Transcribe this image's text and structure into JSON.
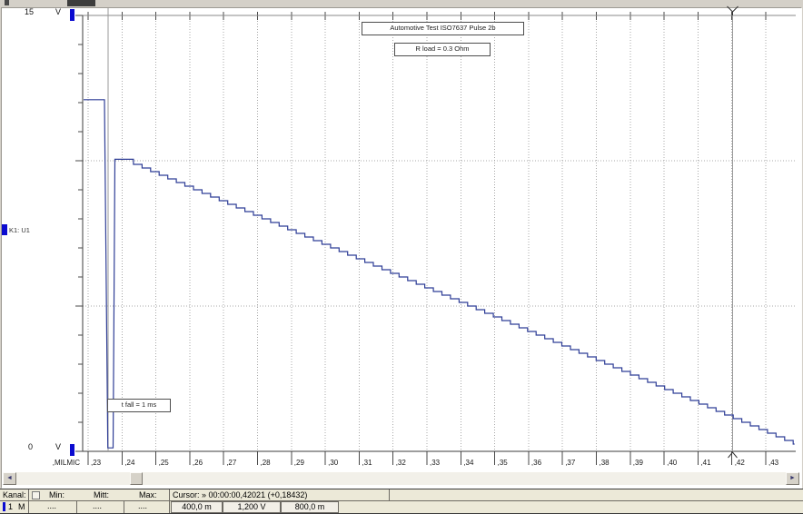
{
  "chart_data": {
    "type": "line",
    "title": "Automotive Test ISO7637 Pulse 2b",
    "annotations": {
      "title_box": "Automotive Test ISO7637 Pulse 2b",
      "r_load_box": "R load = 0.3 Ohm",
      "t_fall_box": "t fall = 1 ms"
    },
    "x_axis": {
      "unit_label": ",MILMIC",
      "t_start": 0.23,
      "t_step": 0.01,
      "tick_labels": [
        ",23",
        ",24",
        ",25",
        ",26",
        ",27",
        ",28",
        ",29",
        ",30",
        ",31",
        ",32",
        ",33",
        ",34",
        ",35",
        ",36",
        ",37",
        ",38",
        ",39",
        ",40",
        ",41",
        ",42",
        ",43"
      ]
    },
    "y_axis": {
      "min": 0,
      "max": 15,
      "unit": "V",
      "top_label": "15",
      "bottom_label": "0",
      "grid_values": [
        5,
        10
      ]
    },
    "series": [
      {
        "name": "K1: U1",
        "color": "#2e3d96",
        "points": [
          [
            0.22866,
            12.1
          ],
          [
            0.23483,
            12.1
          ],
          [
            0.23583,
            0.12
          ],
          [
            0.23737,
            0.12
          ],
          [
            0.23791,
            10.05
          ],
          [
            0.24086,
            10.05
          ],
          [
            0.4385,
            0.28
          ]
        ],
        "staircase": {
          "from_index": 5,
          "step_v": 0.125
        }
      }
    ],
    "cursors": {
      "left_t": 0.23589,
      "right_t": 0.42021
    }
  },
  "channel_table": {
    "col_kanal": "Kanal:",
    "col_min": "Min:",
    "col_mitt": "Mitt:",
    "col_max": "Max:",
    "cursor_header": "Cursor: » 00:00:00,42021 (+0,18432)",
    "row": {
      "num": "1",
      "marker": "M",
      "min": "....",
      "mitt": "....",
      "max": "....",
      "val_left": "400,0 m",
      "val_right": "1,200 V",
      "val_delta": "800,0 m"
    }
  },
  "scrollbar": {
    "left_arrow": "◄",
    "right_arrow": "►"
  }
}
